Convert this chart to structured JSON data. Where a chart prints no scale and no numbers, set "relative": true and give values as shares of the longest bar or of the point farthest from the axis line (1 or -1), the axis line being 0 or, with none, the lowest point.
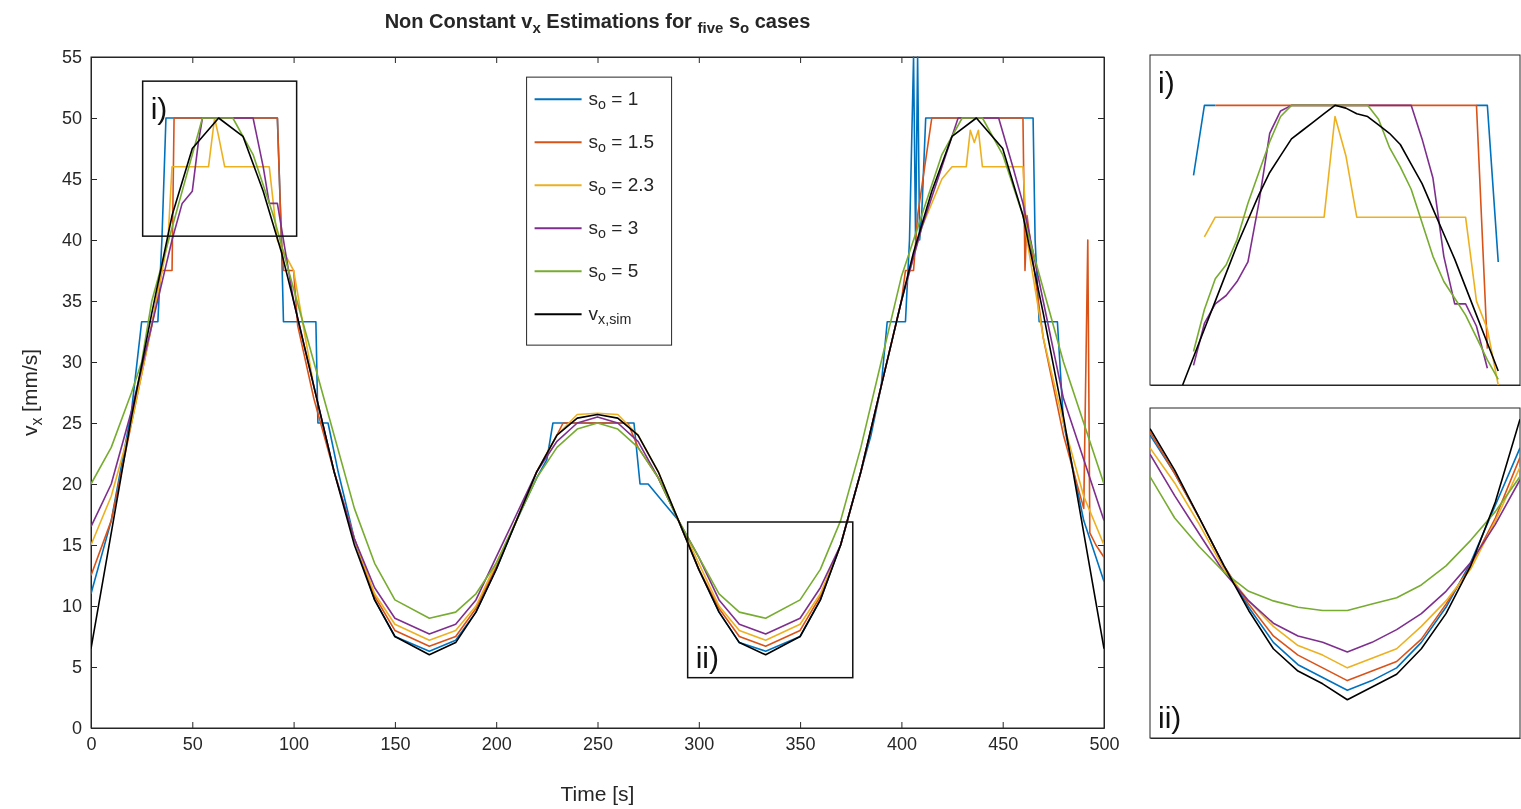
{
  "chart_data": [
    {
      "type": "line",
      "title": "Non Constant v$_{x}$ Estimations for $_{five}$ s$_{o}$ cases",
      "xlabel": "Time [s]",
      "ylabel": "v$_{x}$ [mm/s]",
      "xlim": [
        0,
        500
      ],
      "ylim": [
        0,
        55
      ],
      "xticks": [
        0,
        50,
        100,
        150,
        200,
        250,
        300,
        350,
        400,
        450,
        500
      ],
      "yticks": [
        0,
        5,
        10,
        15,
        20,
        25,
        30,
        35,
        40,
        45,
        50,
        55
      ],
      "grid": false,
      "legend": "top",
      "line_style": "solid",
      "marker": "none",
      "annotations": [
        "i)",
        "ii)"
      ],
      "series": [
        {
          "name": "s$_{o}$ = 1",
          "color": "#0072bd",
          "x": [
            0,
            10,
            20,
            25,
            33,
            35,
            37,
            92,
            94,
            95,
            111,
            112,
            117,
            122,
            130,
            140,
            150,
            167,
            180,
            190,
            200,
            210,
            220,
            225,
            228,
            268,
            271,
            275,
            280,
            290,
            300,
            310,
            320,
            333,
            350,
            360,
            370,
            380,
            385,
            390,
            393,
            402,
            404,
            406,
            407,
            408,
            409,
            410,
            412,
            465,
            466,
            468,
            477,
            480,
            490,
            500
          ],
          "values": [
            11,
            17,
            26,
            33.3,
            33.3,
            40,
            50,
            50,
            40,
            33.3,
            33.3,
            25,
            25,
            21,
            15.5,
            10.5,
            7.5,
            6.3,
            7.2,
            9.5,
            13,
            17,
            20.5,
            22,
            25,
            25,
            20,
            20,
            19,
            17,
            13,
            9.5,
            7,
            6.3,
            7.5,
            10.5,
            15,
            21,
            24,
            28,
            33.3,
            33.3,
            40,
            55,
            40,
            55,
            40,
            42,
            50,
            50,
            40,
            33.3,
            33.3,
            25,
            17,
            12
          ]
        },
        {
          "name": "s$_{o}$ = 1.5",
          "color": "#d95319",
          "x": [
            0,
            10,
            20,
            30,
            35,
            40,
            41,
            92,
            94,
            95,
            100,
            102,
            110,
            120,
            130,
            140,
            150,
            167,
            180,
            190,
            200,
            210,
            220,
            230,
            233,
            265,
            270,
            280,
            290,
            300,
            310,
            320,
            333,
            350,
            360,
            370,
            380,
            390,
            400,
            402,
            406,
            408,
            415,
            460,
            461,
            462,
            470,
            480,
            490,
            492,
            493,
            496,
            500
          ],
          "values": [
            12.5,
            17,
            25,
            33,
            37.5,
            37.5,
            50,
            50,
            40,
            37.5,
            37.5,
            33,
            27,
            21,
            15.5,
            10.8,
            8,
            6.7,
            7.5,
            9.8,
            13.2,
            17,
            21,
            24,
            25,
            25,
            23,
            20.5,
            17,
            13,
            9.8,
            7.5,
            6.7,
            8,
            10.8,
            15,
            21,
            28,
            35,
            37.5,
            37.5,
            42,
            50,
            50,
            37.5,
            42,
            32,
            24,
            18,
            40,
            16,
            15,
            14
          ]
        },
        {
          "name": "s$_{o}$ = 2.3",
          "color": "#edb120",
          "x": [
            0,
            10,
            20,
            30,
            38,
            40,
            58,
            61,
            63,
            66,
            88,
            92,
            100,
            110,
            120,
            130,
            140,
            150,
            167,
            180,
            190,
            200,
            210,
            220,
            230,
            240,
            250,
            260,
            270,
            280,
            290,
            300,
            310,
            320,
            333,
            350,
            360,
            370,
            380,
            390,
            400,
            410,
            420,
            425,
            432,
            434,
            436,
            438,
            440,
            460,
            462,
            470,
            480,
            490,
            500
          ],
          "values": [
            15,
            19,
            25,
            33,
            40,
            46,
            46,
            50,
            48.5,
            46,
            46,
            40,
            37.5,
            28,
            21,
            15.5,
            11,
            8.5,
            7.2,
            8,
            10,
            13.5,
            17,
            21,
            24,
            25.7,
            25.8,
            25.7,
            24,
            21,
            17,
            13.5,
            10,
            8,
            7.2,
            8.5,
            11,
            15,
            21,
            28,
            35,
            41,
            45,
            46,
            46,
            49,
            48,
            49,
            46,
            46,
            40,
            32,
            25,
            19,
            15
          ]
        },
        {
          "name": "s$_{o}$ = 3",
          "color": "#7e2f8e",
          "x": [
            0,
            10,
            20,
            30,
            40,
            45,
            50,
            53,
            55,
            80,
            85,
            88,
            92,
            100,
            110,
            120,
            130,
            140,
            150,
            167,
            180,
            190,
            200,
            210,
            220,
            230,
            240,
            250,
            260,
            270,
            280,
            290,
            300,
            310,
            320,
            333,
            350,
            360,
            370,
            380,
            390,
            400,
            410,
            420,
            428,
            448,
            455,
            460,
            470,
            480,
            490,
            500
          ],
          "values": [
            16.5,
            20,
            26,
            33,
            40,
            43,
            44,
            48,
            50,
            50,
            46,
            43,
            43,
            35,
            28,
            21,
            15.5,
            11.5,
            9,
            7.7,
            8.5,
            10.5,
            14,
            17.5,
            21,
            23.5,
            25,
            25.5,
            25,
            23.5,
            20.5,
            17,
            14,
            10.5,
            8.5,
            7.7,
            9,
            11.5,
            15,
            21,
            28,
            35,
            41,
            46,
            50,
            50,
            46,
            43,
            35,
            27,
            22,
            17
          ]
        },
        {
          "name": "s$_{o}$ = 5",
          "color": "#77ac30",
          "x": [
            0,
            10,
            20,
            25,
            30,
            40,
            50,
            55,
            70,
            80,
            90,
            100,
            110,
            120,
            130,
            140,
            150,
            167,
            180,
            190,
            200,
            210,
            220,
            230,
            240,
            250,
            260,
            270,
            280,
            290,
            300,
            310,
            320,
            333,
            350,
            360,
            370,
            380,
            390,
            400,
            410,
            420,
            430,
            440,
            450,
            460,
            470,
            480,
            490,
            500
          ],
          "values": [
            20,
            23,
            27.5,
            30,
            35,
            41,
            47,
            50,
            50,
            47,
            42,
            36,
            30,
            24,
            18,
            13.5,
            10.5,
            9,
            9.5,
            11,
            13.5,
            17,
            20.5,
            23,
            24.5,
            25,
            24.5,
            23,
            20.5,
            17,
            14,
            11,
            9.5,
            9,
            10.5,
            13,
            17,
            23,
            30,
            37,
            42,
            47,
            50,
            50,
            47,
            42,
            36,
            30,
            25,
            20
          ]
        },
        {
          "name": "v$_{x,sim}$",
          "color": "#000000",
          "x": [
            0,
            10,
            20,
            30,
            40,
            50,
            63,
            75,
            85,
            94,
            100,
            110,
            120,
            130,
            140,
            150,
            167,
            180,
            190,
            200,
            210,
            220,
            230,
            240,
            250,
            260,
            270,
            280,
            290,
            300,
            310,
            320,
            333,
            350,
            360,
            370,
            380,
            390,
            400,
            406,
            415,
            425,
            437,
            450,
            460,
            470,
            480,
            490,
            500
          ],
          "values": [
            6.5,
            16,
            25.5,
            34,
            42,
            47.5,
            50,
            48.5,
            44,
            39,
            35,
            28,
            21,
            15,
            10.5,
            7.5,
            6,
            7,
            9.5,
            13,
            17,
            21,
            24,
            25.4,
            25.7,
            25.4,
            24,
            21,
            17,
            13,
            9.5,
            7,
            6,
            7.5,
            10.5,
            15,
            21,
            28,
            35,
            39,
            44,
            48.5,
            50,
            47.5,
            42,
            34,
            25.5,
            16,
            6.5
          ]
        }
      ]
    },
    {
      "type": "line",
      "relative": true,
      "categories": [
        null,
        null,
        null,
        null,
        null,
        null,
        null,
        null,
        null,
        null,
        null,
        null,
        null,
        null,
        null,
        null,
        null,
        null,
        null,
        null,
        null,
        null,
        null,
        null,
        null,
        null,
        null,
        null,
        null,
        null,
        null,
        null,
        null,
        null,
        null
      ],
      "legend": false,
      "line_style": "solid",
      "marker": "none",
      "annotations": [
        "i)"
      ],
      "series": [
        {
          "color": "#0072bd",
          "values": [
            null,
            null,
            null,
            null,
            0.75,
            1,
            1,
            null,
            null,
            null,
            null,
            null,
            null,
            null,
            null,
            null,
            null,
            null,
            null,
            null,
            null,
            null,
            null,
            null,
            null,
            null,
            null,
            null,
            null,
            null,
            1,
            1,
            0.44,
            null,
            null
          ]
        },
        {
          "color": "#d95319",
          "values": [
            null,
            null,
            null,
            null,
            null,
            null,
            1,
            1,
            1,
            1,
            1,
            1,
            1,
            1,
            1,
            1,
            1,
            1,
            1,
            1,
            1,
            1,
            1,
            1,
            1,
            1,
            1,
            1,
            1,
            1,
            1,
            0.13,
            null,
            null,
            null
          ]
        },
        {
          "color": "#edb120",
          "values": [
            null,
            null,
            null,
            null,
            null,
            0.53,
            0.6,
            0.6,
            0.6,
            0.6,
            0.6,
            0.6,
            0.6,
            0.6,
            0.6,
            0.6,
            0.6,
            0.96,
            0.82,
            0.6,
            0.6,
            0.6,
            0.6,
            0.6,
            0.6,
            0.6,
            0.6,
            0.6,
            0.6,
            0.6,
            0.3,
            0.2,
            0,
            null,
            null
          ]
        },
        {
          "color": "#7e2f8e",
          "values": [
            null,
            null,
            null,
            null,
            0.07,
            0.22,
            0.29,
            0.32,
            0.37,
            0.44,
            0.65,
            0.9,
            0.98,
            1,
            1,
            1,
            1,
            1,
            1,
            1,
            1,
            1,
            1,
            1,
            1,
            0.88,
            0.74,
            0.46,
            0.29,
            0.29,
            0.21,
            0.06,
            null,
            null,
            null
          ]
        },
        {
          "color": "#77ac30",
          "values": [
            null,
            null,
            null,
            null,
            0.12,
            0.27,
            0.38,
            0.43,
            0.52,
            0.65,
            0.76,
            0.87,
            0.96,
            1,
            1,
            1,
            1,
            1,
            1,
            1,
            1,
            0.95,
            0.85,
            0.78,
            0.7,
            0.58,
            0.46,
            0.37,
            0.31,
            0.25,
            0.17,
            0.09,
            0.02,
            null,
            null
          ]
        },
        {
          "color": "#000000",
          "values": [
            null,
            null,
            null,
            0,
            0.1,
            0.2,
            0.3,
            0.4,
            0.5,
            0.59,
            0.68,
            0.76,
            0.82,
            0.88,
            0.91,
            0.94,
            0.97,
            1,
            0.99,
            0.97,
            0.96,
            0.93,
            0.9,
            0.86,
            0.79,
            0.72,
            0.63,
            0.54,
            0.45,
            0.35,
            0.25,
            0.15,
            0.05,
            null,
            null
          ]
        }
      ]
    },
    {
      "type": "line",
      "relative": true,
      "categories": [
        null,
        null,
        null,
        null,
        null,
        null,
        null,
        null,
        null,
        null,
        null,
        null,
        null,
        null,
        null,
        null
      ],
      "legend": false,
      "line_style": "solid",
      "marker": "none",
      "annotations": [
        "ii)"
      ],
      "series": [
        {
          "color": "#0072bd",
          "values": [
            0.95,
            0.83,
            0.69,
            0.54,
            0.41,
            0.3,
            0.23,
            0.19,
            0.15,
            0.18,
            0.22,
            0.3,
            0.41,
            0.55,
            0.73,
            0.91
          ]
        },
        {
          "color": "#d95319",
          "values": [
            0.96,
            0.83,
            0.69,
            0.54,
            0.42,
            0.32,
            0.26,
            0.22,
            0.18,
            0.21,
            0.24,
            0.31,
            0.42,
            0.54,
            0.69,
            0.88
          ]
        },
        {
          "color": "#edb120",
          "values": [
            0.91,
            0.8,
            0.67,
            0.53,
            0.43,
            0.35,
            0.29,
            0.26,
            0.22,
            0.25,
            0.28,
            0.35,
            0.43,
            0.53,
            0.68,
            0.85
          ]
        },
        {
          "color": "#7e2f8e",
          "values": [
            0.89,
            0.76,
            0.64,
            0.52,
            0.43,
            0.36,
            0.32,
            0.3,
            0.27,
            0.3,
            0.34,
            0.39,
            0.46,
            0.55,
            0.67,
            0.81
          ]
        },
        {
          "color": "#77ac30",
          "values": [
            0.82,
            0.69,
            0.6,
            0.52,
            0.46,
            0.43,
            0.41,
            0.4,
            0.4,
            0.42,
            0.44,
            0.48,
            0.54,
            0.62,
            0.71,
            0.82
          ]
        },
        {
          "color": "#000000",
          "values": [
            0.97,
            0.84,
            0.69,
            0.54,
            0.4,
            0.28,
            0.21,
            0.17,
            0.12,
            0.16,
            0.2,
            0.28,
            0.39,
            0.54,
            0.74,
            1
          ]
        }
      ]
    }
  ]
}
